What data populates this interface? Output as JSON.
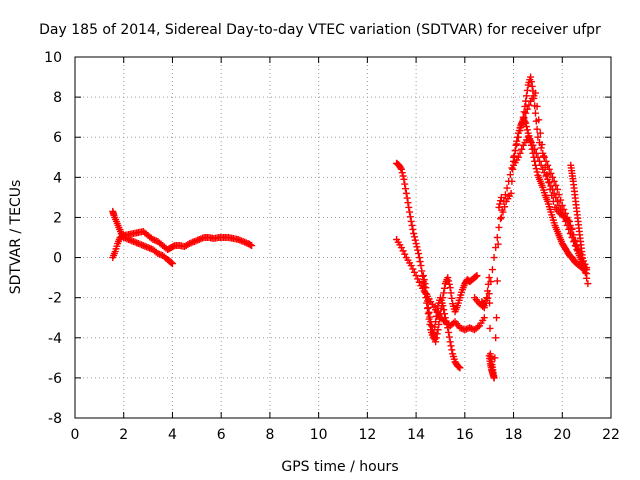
{
  "chart_data": {
    "type": "scatter",
    "title": "Day 185 of 2014, Sidereal Day-to-day VTEC variation (SDTVAR) for receiver ufpr",
    "xlabel": "GPS time / hours",
    "ylabel": "SDTVAR / TECUs",
    "xlim": [
      0,
      22
    ],
    "ylim": [
      -8,
      10
    ],
    "xticks": [
      0,
      2,
      4,
      6,
      8,
      10,
      12,
      14,
      16,
      18,
      20,
      22
    ],
    "yticks": [
      -8,
      -6,
      -4,
      -2,
      0,
      2,
      4,
      6,
      8,
      10
    ],
    "grid": true,
    "marker": "+",
    "series": [
      {
        "name": "SDTVAR",
        "color": "#ff0000",
        "tracks": [
          {
            "x": [
              1.55,
              1.6,
              1.7,
              1.8,
              1.9,
              2.0,
              2.2,
              2.4,
              2.6,
              2.8,
              3.0,
              3.2,
              3.4,
              3.6,
              3.8,
              3.9,
              4.0
            ],
            "y": [
              2.3,
              2.1,
              1.8,
              1.5,
              1.2,
              1.0,
              0.9,
              0.8,
              0.7,
              0.6,
              0.5,
              0.4,
              0.2,
              0.1,
              -0.1,
              -0.2,
              -0.3
            ]
          },
          {
            "x": [
              1.55,
              1.65,
              1.75,
              1.85,
              2.0,
              2.2,
              2.4,
              2.6,
              2.8,
              3.0,
              3.2,
              3.4,
              3.6,
              3.8,
              3.95,
              4.1,
              4.3,
              4.5,
              4.7,
              4.9,
              5.1,
              5.3,
              5.5,
              5.7,
              5.9,
              6.1,
              6.3,
              6.5,
              6.7,
              6.9,
              7.1,
              7.25
            ],
            "y": [
              0.0,
              0.3,
              0.7,
              1.0,
              1.1,
              1.15,
              1.2,
              1.25,
              1.3,
              1.1,
              0.9,
              0.8,
              0.6,
              0.4,
              0.5,
              0.6,
              0.6,
              0.55,
              0.7,
              0.8,
              0.9,
              1.0,
              1.0,
              0.95,
              1.0,
              1.0,
              1.0,
              0.95,
              0.9,
              0.8,
              0.7,
              0.6
            ]
          },
          {
            "x": [
              13.2,
              13.3,
              13.4,
              13.5,
              13.6,
              13.7,
              13.8,
              13.9,
              14.0,
              14.1,
              14.2,
              14.3,
              14.4,
              14.5,
              14.6,
              14.7,
              14.8,
              14.9,
              15.0,
              15.1,
              15.2,
              15.3,
              15.4,
              15.5,
              15.6,
              15.7,
              15.8
            ],
            "y": [
              4.7,
              4.6,
              4.4,
              3.9,
              3.2,
              2.5,
              1.8,
              1.2,
              0.7,
              0.2,
              -0.4,
              -1.2,
              -2.0,
              -2.8,
              -3.6,
              -4.0,
              -3.2,
              -2.4,
              -2.0,
              -2.4,
              -3.0,
              -3.5,
              -4.2,
              -4.8,
              -5.2,
              -5.4,
              -5.5
            ]
          },
          {
            "x": [
              13.2,
              13.4,
              13.6,
              13.8,
              14.0,
              14.2,
              14.4,
              14.6,
              14.8,
              15.0,
              15.2,
              15.4,
              15.6,
              15.8,
              16.0,
              16.2,
              16.4,
              16.6,
              16.8
            ],
            "y": [
              0.9,
              0.5,
              0.0,
              -0.4,
              -0.9,
              -1.4,
              -1.8,
              -2.2,
              -2.6,
              -3.0,
              -3.2,
              -3.4,
              -3.2,
              -3.5,
              -3.6,
              -3.5,
              -3.6,
              -3.4,
              -3.0
            ]
          },
          {
            "x": [
              14.3,
              14.4,
              14.5,
              14.6,
              14.7,
              14.8,
              14.9,
              15.0,
              15.1,
              15.2,
              15.3,
              15.4,
              15.5,
              15.6,
              15.7,
              15.8,
              15.9,
              16.0,
              16.1,
              16.2,
              16.3,
              16.4,
              16.5
            ],
            "y": [
              -0.9,
              -1.5,
              -2.5,
              -3.2,
              -3.8,
              -4.2,
              -3.6,
              -2.8,
              -2.0,
              -1.3,
              -1.0,
              -1.5,
              -2.3,
              -2.7,
              -2.4,
              -2.0,
              -1.6,
              -1.3,
              -1.1,
              -1.2,
              -1.1,
              -1.0,
              -0.9
            ]
          },
          {
            "x": [
              16.7,
              16.8,
              16.9,
              17.0,
              17.05,
              17.1,
              17.15,
              17.2,
              17.3,
              17.4,
              17.5
            ],
            "y": [
              -2.2,
              -2.4,
              -2.0,
              -1.0,
              -4.8,
              -5.2,
              -5.6,
              -6.0,
              -3.0,
              2.5,
              3.0
            ]
          },
          {
            "x": [
              17.0,
              17.05,
              17.1,
              17.15,
              17.2
            ],
            "y": [
              -4.9,
              -5.3,
              -5.6,
              -5.8,
              -6.0
            ]
          },
          {
            "x": [
              16.4,
              16.6,
              16.8,
              17.0,
              17.2,
              17.4,
              17.6,
              17.8,
              18.0,
              18.1,
              18.2,
              18.3,
              18.4,
              18.5,
              18.6,
              18.7,
              18.8,
              18.9,
              19.0,
              19.1,
              19.2,
              19.3,
              19.4,
              19.5,
              19.6,
              19.7,
              19.8,
              19.9,
              20.0,
              20.1,
              20.2,
              20.3,
              20.4,
              20.5,
              20.6,
              20.7,
              20.8,
              20.9,
              21.0
            ],
            "y": [
              -2.0,
              -2.3,
              -2.5,
              -1.8,
              0.0,
              1.5,
              2.8,
              3.8,
              4.8,
              5.6,
              6.2,
              6.6,
              6.9,
              6.7,
              6.2,
              5.8,
              5.2,
              4.6,
              4.1,
              3.8,
              3.5,
              3.1,
              2.8,
              2.4,
              2.0,
              1.6,
              1.3,
              1.0,
              0.7,
              0.5,
              0.3,
              0.1,
              0.0,
              -0.2,
              -0.3,
              -0.4,
              -0.5,
              -0.6,
              -0.6
            ]
          },
          {
            "x": [
              17.5,
              17.7,
              17.9,
              18.0,
              18.2,
              18.4,
              18.5,
              18.6,
              18.7,
              18.8,
              18.9,
              19.0,
              19.2,
              19.4,
              19.6,
              19.8,
              20.0,
              20.2,
              20.4,
              20.6,
              20.8,
              21.0
            ],
            "y": [
              2.0,
              2.8,
              3.2,
              5.0,
              6.0,
              7.0,
              7.8,
              8.6,
              9.0,
              8.3,
              7.2,
              6.0,
              5.2,
              4.6,
              4.0,
              3.4,
              2.6,
              2.0,
              1.4,
              0.6,
              0.0,
              -0.5
            ]
          },
          {
            "x": [
              18.0,
              18.2,
              18.4,
              18.6,
              18.8,
              19.0,
              19.2,
              19.4,
              19.6,
              19.8,
              20.0,
              20.2,
              20.4,
              20.6,
              20.8,
              21.0
            ],
            "y": [
              4.6,
              5.0,
              5.6,
              6.0,
              5.6,
              5.0,
              4.4,
              3.9,
              3.4,
              2.8,
              2.2,
              1.6,
              1.0,
              0.4,
              -0.2,
              -0.8
            ]
          },
          {
            "x": [
              18.3,
              18.5,
              18.7,
              18.9,
              19.1,
              19.3,
              19.5,
              19.7,
              19.9,
              20.1,
              20.3,
              20.5,
              20.7,
              20.9,
              21.05
            ],
            "y": [
              6.5,
              7.2,
              7.8,
              8.2,
              6.2,
              4.5,
              3.4,
              2.5,
              2.2,
              2.0,
              1.8,
              0.8,
              0.1,
              -0.5,
              -1.3
            ]
          },
          {
            "x": [
              20.35,
              20.4,
              20.45,
              20.5,
              20.55,
              20.6,
              20.65,
              20.7,
              20.75,
              20.8,
              20.85,
              20.9
            ],
            "y": [
              4.6,
              4.2,
              3.8,
              3.3,
              2.8,
              2.3,
              1.8,
              1.3,
              0.8,
              0.3,
              -0.2,
              -0.6
            ]
          }
        ]
      }
    ]
  }
}
